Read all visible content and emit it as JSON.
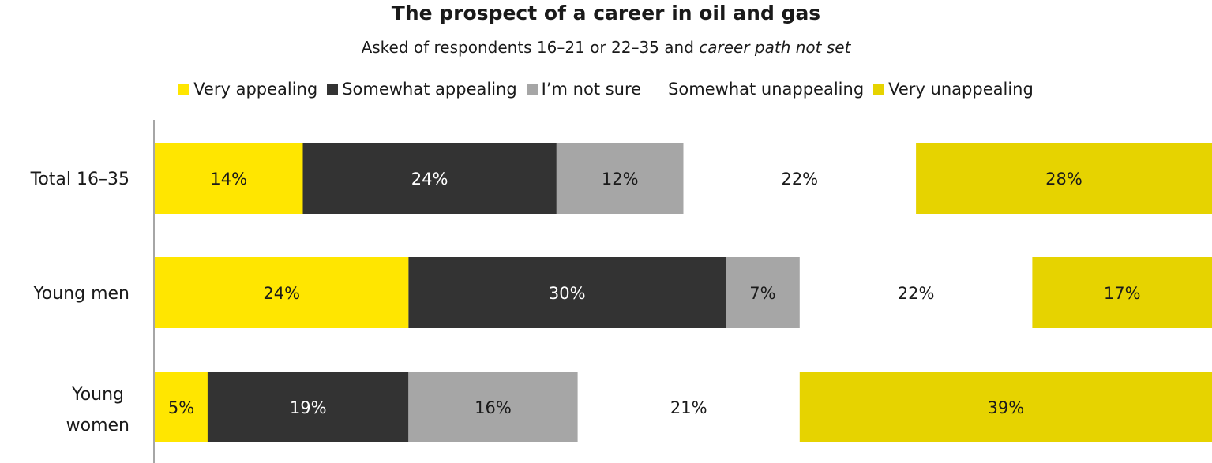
{
  "chart_data": {
    "type": "bar",
    "orientation": "horizontal",
    "stacked": true,
    "title": "The prospect of a career in oil and gas",
    "subtitle": {
      "prefix": "Asked of respondents 16–21 or 22–35 and ",
      "emphasis": "career path not set"
    },
    "categories": [
      "Total 16–35",
      "Young men",
      "Young women"
    ],
    "series": [
      {
        "name": "Very appealing",
        "color": "#FFE600",
        "text_color": "#1a1a1a",
        "fill": true,
        "values": [
          14,
          24,
          5
        ]
      },
      {
        "name": "Somewhat appealing",
        "color": "#333333",
        "text_color": "#ffffff",
        "fill": true,
        "values": [
          24,
          30,
          19
        ]
      },
      {
        "name": "I’m not sure",
        "color": "#A6A6A6",
        "text_color": "#1a1a1a",
        "fill": true,
        "values": [
          12,
          7,
          16
        ]
      },
      {
        "name": "Somewhat unappealing",
        "color": "#ffffff",
        "text_color": "#1a1a1a",
        "fill": false,
        "values": [
          22,
          22,
          21
        ]
      },
      {
        "name": "Very unappealing",
        "color": "#E6D300",
        "text_color": "#1a1a1a",
        "fill": true,
        "values": [
          28,
          17,
          39
        ]
      }
    ],
    "value_suffix": "%",
    "xlim": [
      0,
      100
    ],
    "legend_position": "top",
    "grid": false
  }
}
